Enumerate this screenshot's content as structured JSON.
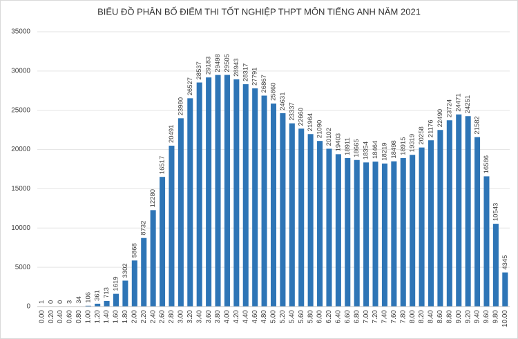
{
  "chart_data": {
    "type": "bar",
    "title": "BIỂU ĐỒ PHÂN BỐ ĐIỂM THI TỐT NGHIỆP THPT MÔN TIẾNG ANH NĂM 2021",
    "categories": [
      "0.00",
      "0.20",
      "0.40",
      "0.60",
      "0.80",
      "1.00",
      "1.20",
      "1.40",
      "1.60",
      "1.80",
      "2.00",
      "2.20",
      "2.40",
      "2.60",
      "2.80",
      "3.00",
      "3.20",
      "3.40",
      "3.60",
      "3.80",
      "4.00",
      "4.20",
      "4.40",
      "4.60",
      "4.80",
      "5.00",
      "5.20",
      "5.40",
      "5.60",
      "5.80",
      "6.00",
      "6.20",
      "6.40",
      "6.60",
      "6.80",
      "7.00",
      "7.20",
      "7.40",
      "7.60",
      "7.80",
      "8.00",
      "8.20",
      "8.40",
      "8.60",
      "8.80",
      "9.00",
      "9.20",
      "9.40",
      "9.60",
      "9.80",
      "10.00"
    ],
    "values": [
      1,
      0,
      0,
      3,
      34,
      106,
      361,
      713,
      1619,
      3302,
      5868,
      8732,
      12280,
      16517,
      20491,
      23980,
      26527,
      28537,
      29183,
      29498,
      29505,
      28943,
      28317,
      27791,
      26867,
      25860,
      24631,
      23337,
      22660,
      21964,
      21090,
      20102,
      19403,
      18911,
      18665,
      18354,
      18464,
      18219,
      18498,
      18915,
      19319,
      20258,
      21176,
      22490,
      23724,
      24471,
      24251,
      21582,
      16586,
      10543,
      4345
    ],
    "color": "#2e75b6",
    "ylim": [
      0,
      35000
    ],
    "yticks": [
      0,
      5000,
      10000,
      15000,
      20000,
      25000,
      30000,
      35000
    ],
    "grid": true
  }
}
